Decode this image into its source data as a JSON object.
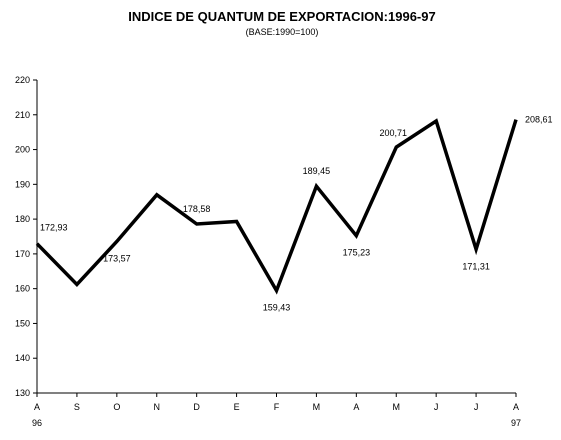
{
  "chart_data": {
    "type": "line",
    "title": "INDICE DE QUANTUM DE EXPORTACION:1996-97",
    "subtitle": "(BASE:1990=100)",
    "categories": [
      "A",
      "S",
      "O",
      "N",
      "D",
      "E",
      "F",
      "M",
      "A",
      "M",
      "J",
      "J",
      "A"
    ],
    "year_labels": [
      {
        "index": 0,
        "text": "96"
      },
      {
        "index": 12,
        "text": "97"
      }
    ],
    "series": [
      {
        "values": [
          172.93,
          161.2,
          173.57,
          187.0,
          178.58,
          179.3,
          159.43,
          189.45,
          175.23,
          200.71,
          208.2,
          171.31,
          208.61
        ],
        "color": "#000000"
      }
    ],
    "data_labels": [
      {
        "index": 0,
        "text": "172,93",
        "pos": "above-right"
      },
      {
        "index": 2,
        "text": "173,57",
        "pos": "below"
      },
      {
        "index": 4,
        "text": "178,58",
        "pos": "above"
      },
      {
        "index": 6,
        "text": "159,43",
        "pos": "below"
      },
      {
        "index": 7,
        "text": "189,45",
        "pos": "above"
      },
      {
        "index": 8,
        "text": "175,23",
        "pos": "below"
      },
      {
        "index": 9,
        "text": "200,71",
        "pos": "above-left"
      },
      {
        "index": 11,
        "text": "171,31",
        "pos": "below"
      },
      {
        "index": 12,
        "text": "208,61",
        "pos": "right"
      }
    ],
    "ylim": [
      130,
      220
    ],
    "yticks": [
      130,
      140,
      150,
      160,
      170,
      180,
      190,
      200,
      210,
      220
    ],
    "grid": false,
    "legend": "none",
    "xlabel": "",
    "ylabel": ""
  }
}
